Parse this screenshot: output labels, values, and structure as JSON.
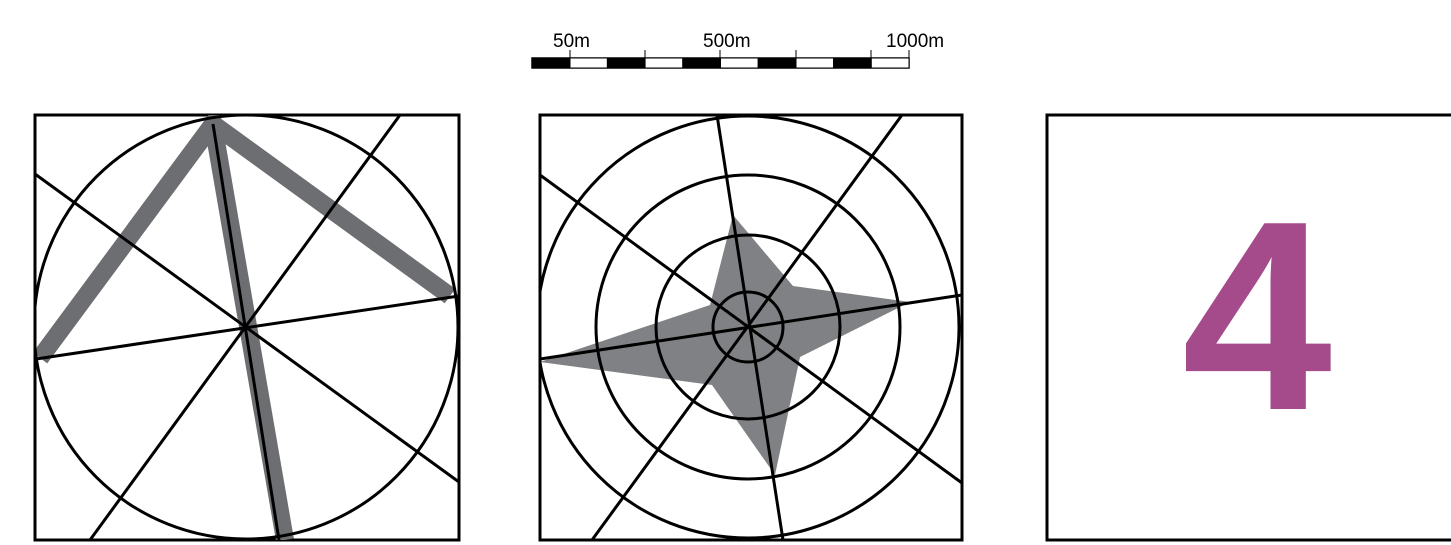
{
  "scale_bar": {
    "labels": [
      "50m",
      "500m",
      "1000m"
    ],
    "segment_count": 10
  },
  "panels": [
    {
      "id": "radial-grid-with-triangle",
      "content": "diagram"
    },
    {
      "id": "radial-grid-with-star",
      "content": "diagram"
    },
    {
      "id": "number-panel",
      "number": "4"
    }
  ],
  "colors": {
    "stroke": "#000000",
    "background": "#ffffff",
    "fill_gray": "#6d6e71",
    "star_gray": "#808184",
    "number": "#a54a8a"
  }
}
